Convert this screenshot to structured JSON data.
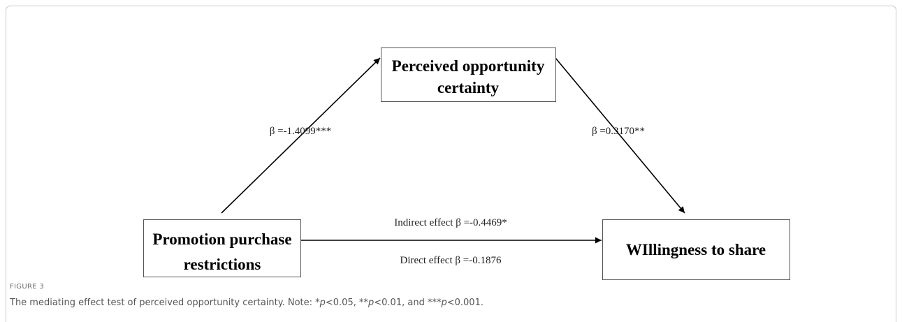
{
  "nodes": [
    {
      "label": [
        "Perceived opportunity",
        "certainty"
      ]
    },
    {
      "label": [
        "Promotion purchase",
        "restrictions"
      ]
    },
    {
      "label": [
        "WIllingness to share"
      ]
    }
  ],
  "edges": [
    {
      "label": "β =-1.4099***"
    },
    {
      "label": "β =0.3170**"
    },
    {
      "label": "Indirect effect  β =-0.4469*"
    },
    {
      "label": "Direct effect  β =-0.1876"
    }
  ],
  "figure": {
    "label": "FIGURE 3",
    "caption": [
      "The mediating effect test of perceived opportunity certainty. Note: *",
      "p",
      "<0.05, **",
      "p",
      "<0.01, and ***",
      "p",
      "<0.001."
    ]
  }
}
